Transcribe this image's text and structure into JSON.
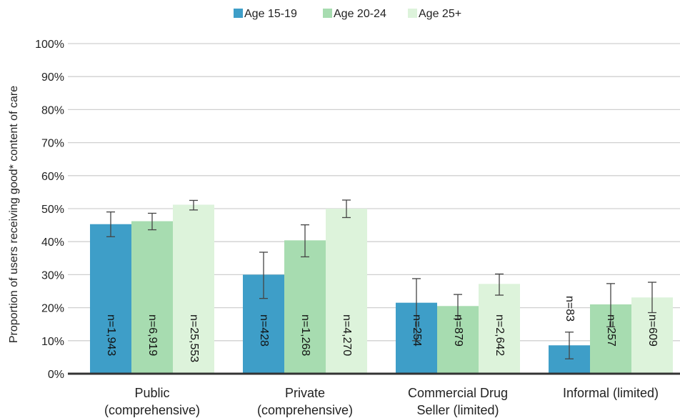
{
  "chart_data": {
    "type": "bar",
    "title": "",
    "xlabel": "",
    "ylabel": "Proportion of users receiving good* content of care",
    "ylim": [
      0,
      100
    ],
    "yticks": [
      "0%",
      "10%",
      "20%",
      "30%",
      "40%",
      "50%",
      "60%",
      "70%",
      "80%",
      "90%",
      "100%"
    ],
    "grid": true,
    "legend_position": "top",
    "categories": [
      [
        "Public",
        "(comprehensive)"
      ],
      [
        "Private",
        "(comprehensive)"
      ],
      [
        "Commercial Drug",
        "Seller (limited)"
      ],
      [
        "Informal (limited)"
      ]
    ],
    "series": [
      {
        "name": "Age 15-19",
        "color": "#3e9ec8",
        "values": [
          45.3,
          30.0,
          21.5,
          8.6
        ],
        "error_low": [
          41.5,
          22.8,
          10.0,
          4.5
        ],
        "error_high": [
          49.0,
          36.8,
          28.8,
          12.6
        ],
        "n_labels": [
          "n=1,943",
          "n=428",
          "n=254",
          "n=83"
        ]
      },
      {
        "name": "Age 20-24",
        "color": "#a7dcb0",
        "values": [
          46.2,
          40.4,
          20.5,
          21.0
        ],
        "error_low": [
          43.6,
          35.4,
          16.6,
          14.2
        ],
        "error_high": [
          48.6,
          45.1,
          24.0,
          27.3
        ],
        "n_labels": [
          "n=6,919",
          "n=1,268",
          "n=879",
          "n=257"
        ]
      },
      {
        "name": "Age 25+",
        "color": "#ddf3db",
        "values": [
          51.2,
          50.0,
          27.2,
          23.1
        ],
        "error_low": [
          49.6,
          47.3,
          23.8,
          18.5
        ],
        "error_high": [
          52.5,
          52.6,
          30.2,
          27.7
        ],
        "n_labels": [
          "n=25,553",
          "n=4,270",
          "n=2,642",
          "n=609"
        ]
      }
    ]
  }
}
